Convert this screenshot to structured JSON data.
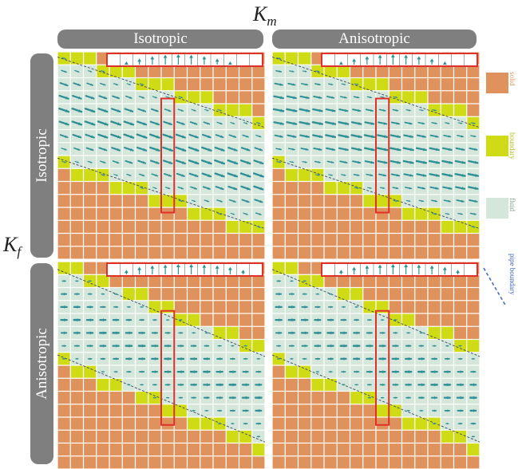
{
  "axes": {
    "km_label": "K",
    "km_sub": "m",
    "kf_label": "K",
    "kf_sub": "f"
  },
  "column_headers": [
    "Isotropic",
    "Anisotropic"
  ],
  "row_headers": [
    "Isotropic",
    "Anisotropic"
  ],
  "legend": {
    "solid": "solid",
    "boundary": "boundary",
    "fluid": "fluid",
    "pipe_boundary": "pipe boundary"
  },
  "colors": {
    "solid": "#e0925c",
    "boundary": "#cfdb14",
    "fluid": "#d4e7da",
    "arrow": "#2f8f96",
    "highlight": "#e0302a",
    "pipe_line": "#4a6fb5",
    "header_bg": "#7f7f7f"
  }
}
